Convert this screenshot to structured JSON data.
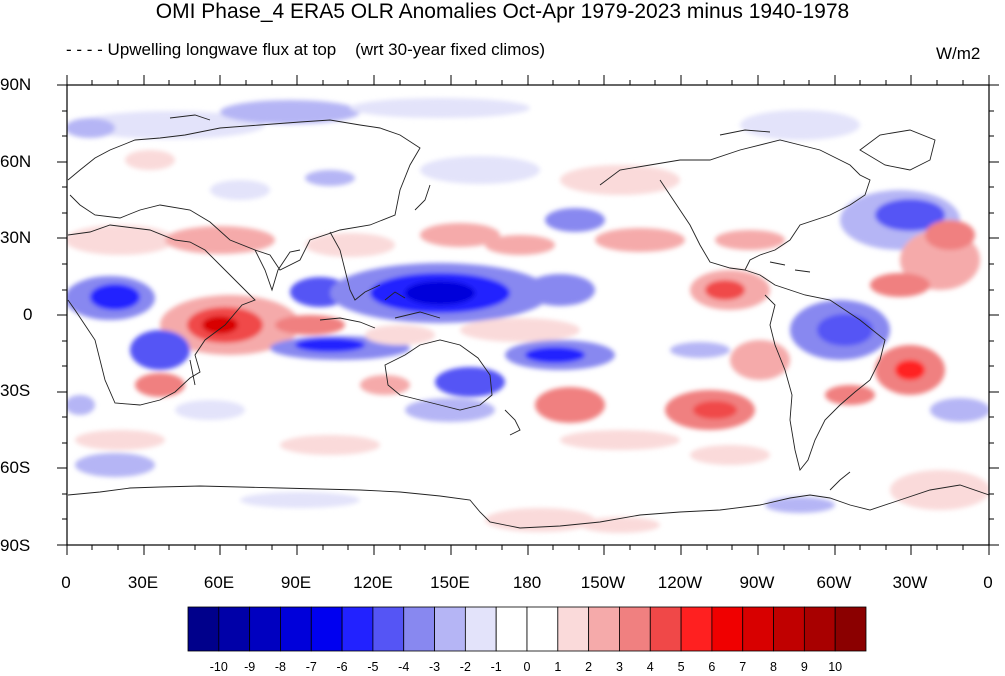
{
  "title": "OMI Phase_4 ERA5 OLR Anomalies Oct-Apr 1979-2023 minus 1940-1978",
  "subtitle": "- - - - Upwelling longwave flux at top    (wrt 30-year fixed climos)",
  "units": "W/m2",
  "map": {
    "projection": "cylindrical equidistant",
    "lat_labels": [
      "90N",
      "60N",
      "30N",
      "0",
      "30S",
      "60S",
      "90S"
    ],
    "lon_labels": [
      "0",
      "30E",
      "60E",
      "90E",
      "120E",
      "150E",
      "180",
      "150W",
      "120W",
      "90W",
      "60W",
      "30W",
      "0"
    ]
  },
  "colorbar": {
    "labels": [
      "-10",
      "-9",
      "-8",
      "-7",
      "-6",
      "-5",
      "-4",
      "-3",
      "-2",
      "-1",
      "0",
      "1",
      "2",
      "3",
      "4",
      "5",
      "6",
      "7",
      "8",
      "9",
      "10"
    ],
    "colors": [
      "#00008b",
      "#0000a8",
      "#0000c0",
      "#0000da",
      "#0000f0",
      "#2222ff",
      "#5555f5",
      "#8888f0",
      "#b5b5f5",
      "#e3e3fa",
      "#ffffff",
      "#ffffff",
      "#fadada",
      "#f5aaaa",
      "#f08080",
      "#f04848",
      "#ff2020",
      "#f00000",
      "#d80000",
      "#c00000",
      "#a80000",
      "#8b0000"
    ]
  }
}
